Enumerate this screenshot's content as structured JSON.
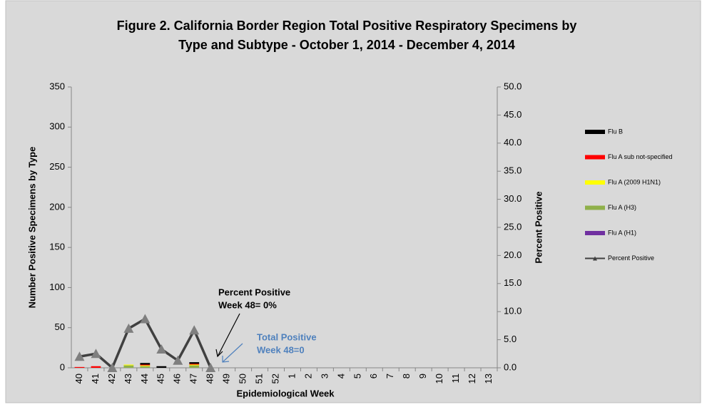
{
  "chart_data": {
    "type": "bar",
    "title": [
      "Figure 2. California Border Region Total Positive Respiratory Specimens by",
      "Type and Subtype - October 1, 2014 - December 4, 2014"
    ],
    "x_label": "Epidemiological Week",
    "y_label": "Number Positive Specimens by Type",
    "y2_label": "Percent Positive",
    "categories": [
      "40",
      "41",
      "42",
      "43",
      "44",
      "45",
      "46",
      "47",
      "48",
      "49",
      "50",
      "51",
      "52",
      "1",
      "2",
      "3",
      "4",
      "5",
      "6",
      "7",
      "8",
      "9",
      "10",
      "11",
      "12",
      "13"
    ],
    "stacked": true,
    "series": [
      {
        "name": "Flu B",
        "color": "#000000",
        "values": [
          0,
          0,
          0,
          0,
          2,
          2,
          0,
          2,
          0,
          null,
          null,
          null,
          null,
          null,
          null,
          null,
          null,
          null,
          null,
          null,
          null,
          null,
          null,
          null,
          null,
          null
        ]
      },
      {
        "name": "Flu A sub not-specified",
        "color": "#ff0000",
        "values": [
          1,
          2,
          0,
          0,
          1,
          0,
          0,
          1,
          0,
          null,
          null,
          null,
          null,
          null,
          null,
          null,
          null,
          null,
          null,
          null,
          null,
          null,
          null,
          null,
          null,
          null
        ]
      },
      {
        "name": "Flu A (2009 H1N1)",
        "color": "#ffff00",
        "values": [
          0,
          0,
          0,
          1,
          1,
          0,
          0,
          1,
          0,
          null,
          null,
          null,
          null,
          null,
          null,
          null,
          null,
          null,
          null,
          null,
          null,
          null,
          null,
          null,
          null,
          null
        ]
      },
      {
        "name": "Flu A (H3)",
        "color": "#8fb04a",
        "values": [
          0,
          0,
          0,
          3,
          2,
          0,
          0,
          3,
          0,
          null,
          null,
          null,
          null,
          null,
          null,
          null,
          null,
          null,
          null,
          null,
          null,
          null,
          null,
          null,
          null,
          null
        ]
      },
      {
        "name": "Flu A (H1)",
        "color": "#7030a0",
        "values": [
          0,
          0,
          0,
          0,
          0,
          0,
          0,
          0,
          0,
          null,
          null,
          null,
          null,
          null,
          null,
          null,
          null,
          null,
          null,
          null,
          null,
          null,
          null,
          null,
          null,
          null
        ]
      },
      {
        "name": "Percent Positive",
        "type": "line",
        "axis": "y2",
        "color": "#404040",
        "values": [
          2.0,
          2.5,
          0,
          7.0,
          8.7,
          3.3,
          1.3,
          6.7,
          0,
          null,
          null,
          null,
          null,
          null,
          null,
          null,
          null,
          null,
          null,
          null,
          null,
          null,
          null,
          null,
          null,
          null
        ]
      }
    ],
    "ylim": [
      0,
      350
    ],
    "yticks": [
      0,
      50,
      100,
      150,
      200,
      250,
      300,
      350
    ],
    "y2lim": [
      0,
      50
    ],
    "y2ticks": [
      {
        "value": 0,
        "label": "0.0"
      },
      {
        "value": 5,
        "label": "5.0"
      },
      {
        "value": 10,
        "label": "10.0"
      },
      {
        "value": 15,
        "label": "15.0"
      },
      {
        "value": 20,
        "label": "20.0"
      },
      {
        "value": 25,
        "label": "25.0"
      },
      {
        "value": 30,
        "label": "30.0"
      },
      {
        "value": 35,
        "label": "35.0"
      },
      {
        "value": 40,
        "label": "40.0"
      },
      {
        "value": 45,
        "label": "45.0"
      },
      {
        "value": 50,
        "label": "50.0"
      }
    ],
    "legend": "right",
    "annotations": [
      {
        "lines": [
          "Percent Positive",
          "Week 48= 0%"
        ],
        "color": "#000000"
      },
      {
        "lines": [
          "Total Positive",
          "Week 48=0"
        ],
        "color": "#4f81bd"
      }
    ]
  }
}
